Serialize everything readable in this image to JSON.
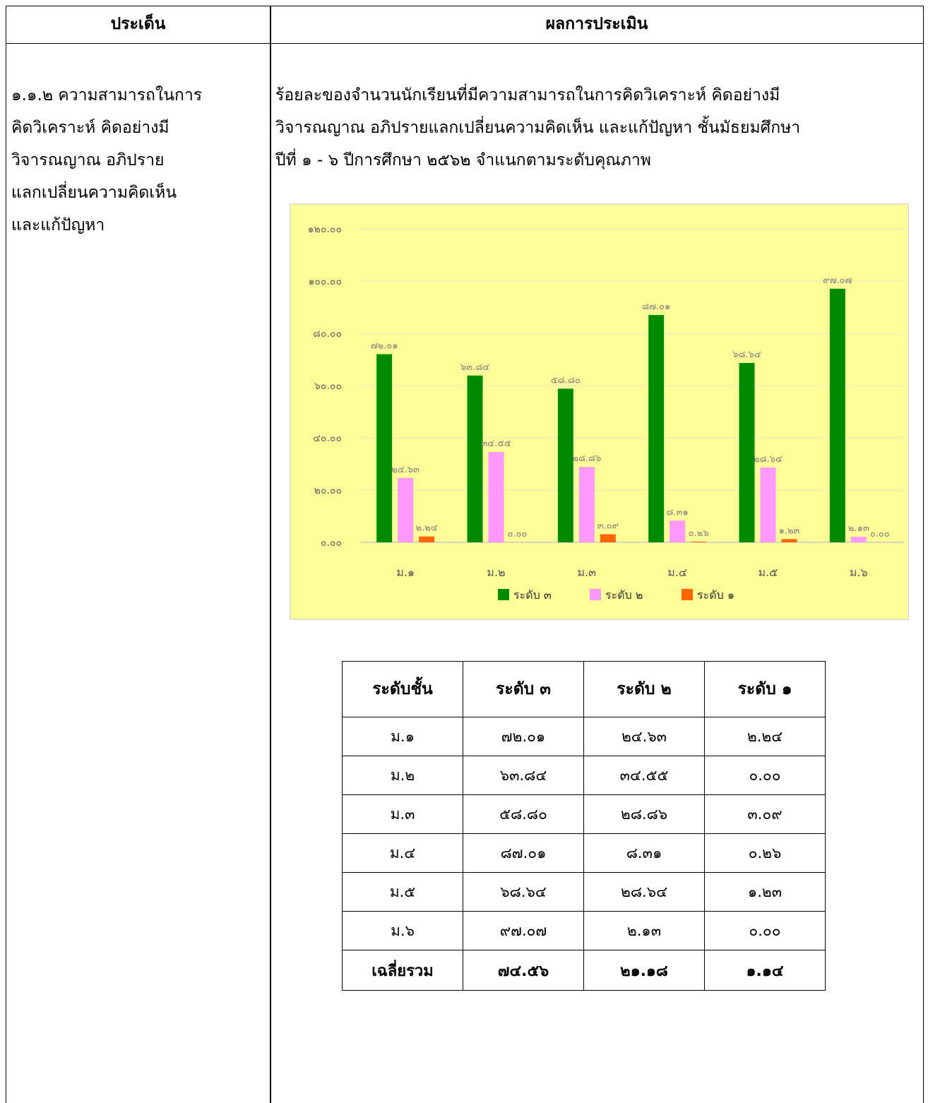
{
  "header": {
    "col1": "ประเด็น",
    "col2": "ผลการประเมิน"
  },
  "left_lines": [
    "๑.๑.๒  ความสามารถในการ",
    "คิดวิเคราะห์  คิดอย่างมี",
    "วิจารณญาณ  อภิปราย",
    "แลกเปลี่ยนความคิดเห็น",
    "และแก้ปัญหา"
  ],
  "para_lines": [
    "ร้อยละของจำนวนนักเรียนที่มีความสามารถในการคิดวิเคราะห์  คิดอย่างมี",
    "วิจารณญาณ  อภิปรายแลกเปลี่ยนความคิดเห็น  และแก้ปัญหา ชั้นมัธยมศึกษา",
    "ปีที่ ๑ - ๖ ปีการศึกษา ๒๕๖๒ จำแนกตามระดับคุณภาพ"
  ],
  "chart_data": {
    "type": "bar",
    "categories": [
      "ม.๑",
      "ม.๒",
      "ม.๓",
      "ม.๔",
      "ม.๕",
      "ม.๖"
    ],
    "ylim": [
      0,
      120
    ],
    "yticks": [
      0,
      20,
      40,
      60,
      80,
      100,
      120
    ],
    "ytick_labels": [
      "๐.๐๐",
      "๒๐.๐๐",
      "๔๐.๐๐",
      "๖๐.๐๐",
      "๘๐.๐๐",
      "๑๐๐.๐๐",
      "๑๒๐.๐๐"
    ],
    "grid": true,
    "legend": "bottom",
    "background": "#ffff99",
    "series": [
      {
        "name": "ระดับ ๓",
        "color": "#008a00",
        "values": [
          72.01,
          63.84,
          58.8,
          87.01,
          68.64,
          97.07
        ],
        "labels": [
          "๗๒.๐๑",
          "๖๓.๘๔",
          "๕๘.๘๐",
          "๘๗.๐๑",
          "๖๘.๖๔",
          "๙๗.๐๗"
        ]
      },
      {
        "name": "ระดับ ๒",
        "color": "#ff99ff",
        "values": [
          24.63,
          34.55,
          28.86,
          8.31,
          28.64,
          2.13
        ],
        "labels": [
          "๒๔.๖๓",
          "๓๔.๕๕",
          "๒๘.๘๖",
          "๘.๓๑",
          "๒๘.๖๔",
          "๒.๑๓"
        ]
      },
      {
        "name": "ระดับ ๑",
        "color": "#ff6600",
        "values": [
          2.24,
          0.0,
          3.09,
          0.26,
          1.23,
          0.0
        ],
        "labels": [
          "๒.๒๔",
          "๐.๐๐",
          "๓.๐๙",
          "๐.๒๖",
          "๑.๒๓",
          "๐.๐๐"
        ]
      }
    ]
  },
  "table": {
    "headers": [
      "ระดับชั้น",
      "ระดับ ๓",
      "ระดับ ๒",
      "ระดับ ๑"
    ],
    "rows": [
      [
        "ม.๑",
        "๗๒.๐๑",
        "๒๔.๖๓",
        "๒.๒๔"
      ],
      [
        "ม.๒",
        "๖๓.๘๔",
        "๓๔.๕๕",
        "๐.๐๐"
      ],
      [
        "ม.๓",
        "๕๘.๘๐",
        "๒๘.๘๖",
        "๓.๐๙"
      ],
      [
        "ม.๔",
        "๘๗.๐๑",
        "๘.๓๑",
        "๐.๒๖"
      ],
      [
        "ม.๕",
        "๖๘.๖๔",
        "๒๘.๖๔",
        "๑.๒๓"
      ],
      [
        "ม.๖",
        "๙๗.๐๗",
        "๒.๑๓",
        "๐.๐๐"
      ]
    ],
    "total": [
      "เฉลี่ยรวม",
      "๗๔.๕๖",
      "๒๑.๑๘",
      "๑.๑๔"
    ]
  }
}
